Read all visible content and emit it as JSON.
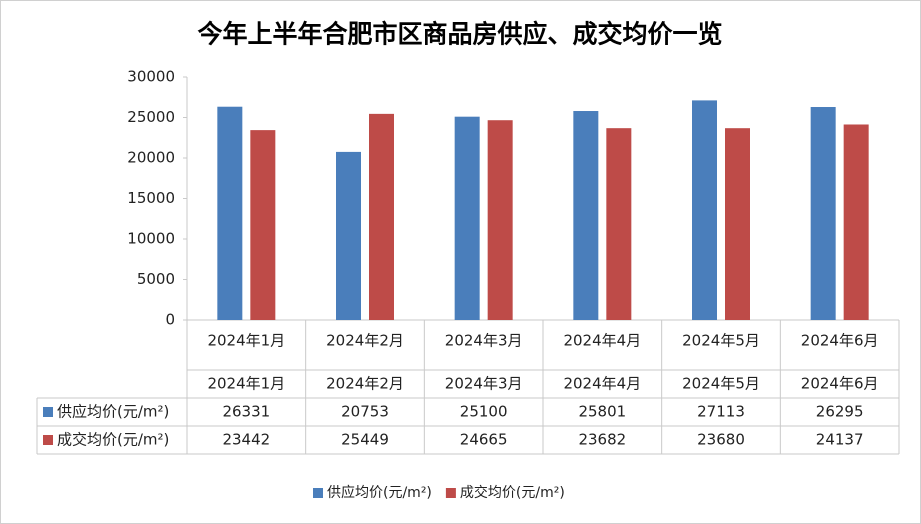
{
  "chart_data": {
    "type": "bar",
    "title": "今年上半年合肥市区商品房供应、成交均价一览",
    "categories": [
      "2024年1月",
      "2024年2月",
      "2024年3月",
      "2024年4月",
      "2024年5月",
      "2024年6月"
    ],
    "series": [
      {
        "name": "供应均价(元/m²)",
        "color": "#4a7ebb",
        "values": [
          26331,
          20753,
          25100,
          25801,
          27113,
          26295
        ]
      },
      {
        "name": "成交均价(元/m²)",
        "color": "#be4b48",
        "values": [
          23442,
          25449,
          24665,
          23682,
          23680,
          24137
        ]
      }
    ],
    "ylim": [
      0,
      30000
    ],
    "yticks": [
      0,
      5000,
      10000,
      15000,
      20000,
      25000,
      30000
    ],
    "grid": false,
    "legend": "bottom"
  }
}
